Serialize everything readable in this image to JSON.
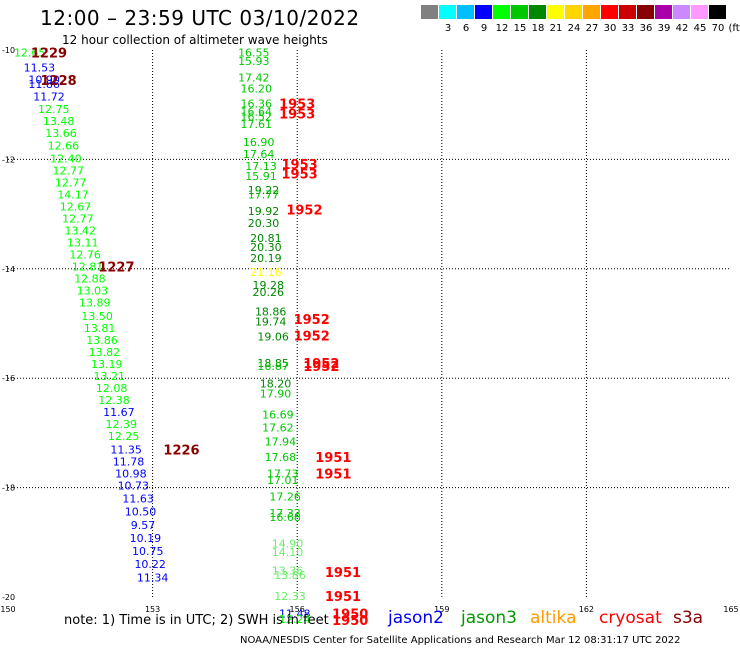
{
  "header": {
    "title": "12:00 – 23:59 UTC 03/10/2022",
    "subtitle": "12 hour collection of altimeter wave heights"
  },
  "color_scale": {
    "unit_label": "(ft)",
    "bins": [
      {
        "label": "",
        "color": "#808080"
      },
      {
        "label": "3",
        "color": "#00ffff"
      },
      {
        "label": "6",
        "color": "#00bfff"
      },
      {
        "label": "9",
        "color": "#0000ff"
      },
      {
        "label": "12",
        "color": "#00ff00"
      },
      {
        "label": "15",
        "color": "#00c800"
      },
      {
        "label": "18",
        "color": "#008800"
      },
      {
        "label": "21",
        "color": "#ffff00"
      },
      {
        "label": "24",
        "color": "#ffd700"
      },
      {
        "label": "27",
        "color": "#ffa500"
      },
      {
        "label": "30",
        "color": "#ff0000"
      },
      {
        "label": "33",
        "color": "#cc0000"
      },
      {
        "label": "36",
        "color": "#880000"
      },
      {
        "label": "39",
        "color": "#aa00aa"
      },
      {
        "label": "42",
        "color": "#cc88ff"
      },
      {
        "label": "45",
        "color": "#ff99ff"
      },
      {
        "label": "70",
        "color": "#000000"
      }
    ]
  },
  "chart_data": {
    "type": "scatter",
    "title": "12:00 – 23:59 UTC 03/10/2022",
    "subtitle": "12 hour collection of altimeter wave heights",
    "xlim": [
      150,
      165
    ],
    "ylim": [
      -20,
      -10
    ],
    "x_ticks": [
      150,
      153,
      156,
      159,
      162,
      165
    ],
    "y_ticks": [
      -10,
      -12,
      -14,
      -16,
      -18,
      -20
    ],
    "x_tick_labels": [
      "150",
      "153",
      "156",
      "159",
      "162",
      "165"
    ],
    "y_tick_labels": [
      "-10",
      "-12",
      "-14",
      "-16",
      "-18",
      "-20"
    ],
    "grid": true,
    "points": [
      {
        "lon": 150.45,
        "lat": -10.05,
        "v": "12.65",
        "c": "#00ff00"
      },
      {
        "lon": 150.65,
        "lat": -10.32,
        "v": "11.53",
        "c": "#0000ff"
      },
      {
        "lon": 150.75,
        "lat": -10.54,
        "v": "10.90",
        "c": "#0000ff"
      },
      {
        "lon": 150.75,
        "lat": -10.62,
        "v": "11.86",
        "c": "#0000ff"
      },
      {
        "lon": 150.85,
        "lat": -10.85,
        "v": "11.72",
        "c": "#0000ff"
      },
      {
        "lon": 150.95,
        "lat": -11.08,
        "v": "12.75",
        "c": "#00ff00"
      },
      {
        "lon": 151.05,
        "lat": -11.3,
        "v": "13.48",
        "c": "#00ff00"
      },
      {
        "lon": 151.1,
        "lat": -11.52,
        "v": "13.66",
        "c": "#00ff00"
      },
      {
        "lon": 151.15,
        "lat": -11.75,
        "v": "12.66",
        "c": "#00ff00"
      },
      {
        "lon": 151.2,
        "lat": -11.98,
        "v": "12.40",
        "c": "#00ff00"
      },
      {
        "lon": 151.25,
        "lat": -12.2,
        "v": "12.77",
        "c": "#00ff00"
      },
      {
        "lon": 151.3,
        "lat": -12.42,
        "v": "12.77",
        "c": "#00ff00"
      },
      {
        "lon": 151.35,
        "lat": -12.64,
        "v": "14.17",
        "c": "#00ff00"
      },
      {
        "lon": 151.4,
        "lat": -12.86,
        "v": "12.67",
        "c": "#00ff00"
      },
      {
        "lon": 151.45,
        "lat": -13.08,
        "v": "12.77",
        "c": "#00ff00"
      },
      {
        "lon": 151.5,
        "lat": -13.3,
        "v": "13.42",
        "c": "#00ff00"
      },
      {
        "lon": 151.55,
        "lat": -13.52,
        "v": "13.11",
        "c": "#00ff00"
      },
      {
        "lon": 151.6,
        "lat": -13.74,
        "v": "12.76",
        "c": "#00ff00"
      },
      {
        "lon": 151.65,
        "lat": -13.96,
        "v": "12.81",
        "c": "#00ff00"
      },
      {
        "lon": 151.7,
        "lat": -14.18,
        "v": "12.88",
        "c": "#00ff00"
      },
      {
        "lon": 151.75,
        "lat": -14.4,
        "v": "13.03",
        "c": "#00ff00"
      },
      {
        "lon": 151.8,
        "lat": -14.62,
        "v": "13.89",
        "c": "#00ff00"
      },
      {
        "lon": 151.85,
        "lat": -14.86,
        "v": "13.50",
        "c": "#00ff00"
      },
      {
        "lon": 151.9,
        "lat": -15.08,
        "v": "13.81",
        "c": "#00ff00"
      },
      {
        "lon": 151.95,
        "lat": -15.3,
        "v": "13.86",
        "c": "#00ff00"
      },
      {
        "lon": 152.0,
        "lat": -15.52,
        "v": "13.82",
        "c": "#00ff00"
      },
      {
        "lon": 152.05,
        "lat": -15.74,
        "v": "13.19",
        "c": "#00ff00"
      },
      {
        "lon": 152.1,
        "lat": -15.96,
        "v": "13.21",
        "c": "#00ff00"
      },
      {
        "lon": 152.15,
        "lat": -16.18,
        "v": "12.08",
        "c": "#00ff00"
      },
      {
        "lon": 152.2,
        "lat": -16.4,
        "v": "12.38",
        "c": "#00ff00"
      },
      {
        "lon": 152.3,
        "lat": -16.62,
        "v": "11.67",
        "c": "#0000ff"
      },
      {
        "lon": 152.35,
        "lat": -16.84,
        "v": "12.39",
        "c": "#00ff00"
      },
      {
        "lon": 152.4,
        "lat": -17.06,
        "v": "12.25",
        "c": "#00ff00"
      },
      {
        "lon": 152.45,
        "lat": -17.3,
        "v": "11.35",
        "c": "#0000ff"
      },
      {
        "lon": 152.5,
        "lat": -17.52,
        "v": "11.78",
        "c": "#0000ff"
      },
      {
        "lon": 152.55,
        "lat": -17.74,
        "v": "10.98",
        "c": "#0000ff"
      },
      {
        "lon": 152.6,
        "lat": -17.96,
        "v": "10.73",
        "c": "#0000ff"
      },
      {
        "lon": 152.7,
        "lat": -18.2,
        "v": "11.63",
        "c": "#0000ff"
      },
      {
        "lon": 152.75,
        "lat": -18.44,
        "v": "10.50",
        "c": "#0000ff"
      },
      {
        "lon": 152.8,
        "lat": -18.68,
        "v": "9.57",
        "c": "#0000ff"
      },
      {
        "lon": 152.85,
        "lat": -18.92,
        "v": "10.19",
        "c": "#0000ff"
      },
      {
        "lon": 152.9,
        "lat": -19.16,
        "v": "10.75",
        "c": "#0000ff"
      },
      {
        "lon": 152.95,
        "lat": -19.4,
        "v": "10.22",
        "c": "#0000ff"
      },
      {
        "lon": 153.0,
        "lat": -19.64,
        "v": "11.34",
        "c": "#0000ff"
      },
      {
        "lon": 155.1,
        "lat": -10.05,
        "v": "16.55",
        "c": "#00c800"
      },
      {
        "lon": 155.1,
        "lat": -10.2,
        "v": "15.93",
        "c": "#00c800"
      },
      {
        "lon": 155.1,
        "lat": -10.5,
        "v": "17.42",
        "c": "#00c800"
      },
      {
        "lon": 155.15,
        "lat": -10.7,
        "v": "16.20",
        "c": "#00c800"
      },
      {
        "lon": 155.15,
        "lat": -10.98,
        "v": "16.36",
        "c": "#00c800"
      },
      {
        "lon": 155.15,
        "lat": -11.12,
        "v": "16.64",
        "c": "#00c800"
      },
      {
        "lon": 155.15,
        "lat": -11.22,
        "v": "16.52",
        "c": "#00c800"
      },
      {
        "lon": 155.15,
        "lat": -11.35,
        "v": "17.61",
        "c": "#00c800"
      },
      {
        "lon": 155.2,
        "lat": -11.68,
        "v": "16.90",
        "c": "#00c800"
      },
      {
        "lon": 155.2,
        "lat": -11.9,
        "v": "17.64",
        "c": "#00c800"
      },
      {
        "lon": 155.25,
        "lat": -12.12,
        "v": "17.13",
        "c": "#00c800"
      },
      {
        "lon": 155.25,
        "lat": -12.3,
        "v": "15.91",
        "c": "#00c800"
      },
      {
        "lon": 155.3,
        "lat": -12.56,
        "v": "19.22",
        "c": "#008800"
      },
      {
        "lon": 155.3,
        "lat": -12.64,
        "v": "17.77",
        "c": "#00c800"
      },
      {
        "lon": 155.3,
        "lat": -12.94,
        "v": "19.92",
        "c": "#008800"
      },
      {
        "lon": 155.3,
        "lat": -13.16,
        "v": "20.30",
        "c": "#008800"
      },
      {
        "lon": 155.35,
        "lat": -13.44,
        "v": "20.81",
        "c": "#008800"
      },
      {
        "lon": 155.35,
        "lat": -13.6,
        "v": "20.30",
        "c": "#008800"
      },
      {
        "lon": 155.35,
        "lat": -13.8,
        "v": "20.19",
        "c": "#008800"
      },
      {
        "lon": 155.35,
        "lat": -14.06,
        "v": "21.16",
        "c": "#ffff00"
      },
      {
        "lon": 155.4,
        "lat": -14.3,
        "v": "19.28",
        "c": "#008800"
      },
      {
        "lon": 155.4,
        "lat": -14.42,
        "v": "20.26",
        "c": "#008800"
      },
      {
        "lon": 155.45,
        "lat": -14.78,
        "v": "18.86",
        "c": "#008800"
      },
      {
        "lon": 155.45,
        "lat": -14.96,
        "v": "19.74",
        "c": "#008800"
      },
      {
        "lon": 155.5,
        "lat": -15.24,
        "v": "19.06",
        "c": "#008800"
      },
      {
        "lon": 155.5,
        "lat": -15.72,
        "v": "18.85",
        "c": "#008800"
      },
      {
        "lon": 155.5,
        "lat": -15.78,
        "v": "16.87",
        "c": "#00c800"
      },
      {
        "lon": 155.55,
        "lat": -16.1,
        "v": "18.20",
        "c": "#008800"
      },
      {
        "lon": 155.55,
        "lat": -16.28,
        "v": "17.90",
        "c": "#00c800"
      },
      {
        "lon": 155.6,
        "lat": -16.66,
        "v": "16.69",
        "c": "#00c800"
      },
      {
        "lon": 155.6,
        "lat": -16.9,
        "v": "17.62",
        "c": "#00c800"
      },
      {
        "lon": 155.65,
        "lat": -17.16,
        "v": "17.94",
        "c": "#00c800"
      },
      {
        "lon": 155.65,
        "lat": -17.44,
        "v": "17.68",
        "c": "#00c800"
      },
      {
        "lon": 155.7,
        "lat": -17.74,
        "v": "17.73",
        "c": "#00c800"
      },
      {
        "lon": 155.7,
        "lat": -17.86,
        "v": "17.01",
        "c": "#00c800"
      },
      {
        "lon": 155.75,
        "lat": -18.16,
        "v": "17.26",
        "c": "#00c800"
      },
      {
        "lon": 155.75,
        "lat": -18.46,
        "v": "17.32",
        "c": "#00c800"
      },
      {
        "lon": 155.75,
        "lat": -18.54,
        "v": "16.68",
        "c": "#00c800"
      },
      {
        "lon": 155.8,
        "lat": -19.02,
        "v": "14.90",
        "c": "#66ee66"
      },
      {
        "lon": 155.8,
        "lat": -19.18,
        "v": "14.10",
        "c": "#66ee66"
      },
      {
        "lon": 155.8,
        "lat": -19.52,
        "v": "13.36",
        "c": "#66ee66"
      },
      {
        "lon": 155.85,
        "lat": -19.6,
        "v": "13.86",
        "c": "#66ee66"
      },
      {
        "lon": 155.85,
        "lat": -19.98,
        "v": "12.33",
        "c": "#66ee66"
      },
      {
        "lon": 155.95,
        "lat": -20.3,
        "v": "11.48",
        "c": "#0000ff"
      },
      {
        "lon": 155.95,
        "lat": -20.4,
        "v": "12.24",
        "c": "#00ff00"
      }
    ],
    "time_labels": [
      {
        "lon": 150.85,
        "lat": -10.05,
        "t": "1229",
        "c": "#880000"
      },
      {
        "lon": 151.05,
        "lat": -10.55,
        "t": "1228",
        "c": "#880000"
      },
      {
        "lon": 152.25,
        "lat": -13.96,
        "t": "1227",
        "c": "#880000"
      },
      {
        "lon": 153.6,
        "lat": -17.3,
        "t": "1226",
        "c": "#880000"
      },
      {
        "lon": 156.0,
        "lat": -10.98,
        "t": "1953",
        "c": "#ff0000"
      },
      {
        "lon": 156.0,
        "lat": -11.16,
        "t": "1953",
        "c": "#ff0000"
      },
      {
        "lon": 156.05,
        "lat": -12.08,
        "t": "1953",
        "c": "#ff0000"
      },
      {
        "lon": 156.05,
        "lat": -12.26,
        "t": "1953",
        "c": "#ff0000"
      },
      {
        "lon": 156.15,
        "lat": -12.92,
        "t": "1952",
        "c": "#ff0000"
      },
      {
        "lon": 156.3,
        "lat": -14.92,
        "t": "1952",
        "c": "#ff0000"
      },
      {
        "lon": 156.3,
        "lat": -15.22,
        "t": "1952",
        "c": "#ff0000"
      },
      {
        "lon": 156.5,
        "lat": -15.72,
        "t": "1952",
        "c": "#ff0000"
      },
      {
        "lon": 156.5,
        "lat": -15.78,
        "t": "1952",
        "c": "#ff0000"
      },
      {
        "lon": 156.75,
        "lat": -17.44,
        "t": "1951",
        "c": "#ff0000"
      },
      {
        "lon": 156.75,
        "lat": -17.74,
        "t": "1951",
        "c": "#ff0000"
      },
      {
        "lon": 156.95,
        "lat": -19.54,
        "t": "1951",
        "c": "#ff0000"
      },
      {
        "lon": 156.95,
        "lat": -19.98,
        "t": "1951",
        "c": "#ff0000"
      },
      {
        "lon": 157.1,
        "lat": -20.3,
        "t": "1950",
        "c": "#ff0000"
      },
      {
        "lon": 157.1,
        "lat": -20.42,
        "t": "1950",
        "c": "#ff0000"
      }
    ]
  },
  "footer": {
    "note": "note: 1) Time is in UTC; 2) SWH is in feet",
    "credit": "NOAA/NESDIS Center for Satellite Applications and Research   Mar 12 08:31:17 UTC 2022",
    "satellites": [
      {
        "name": "jason2",
        "color": "#0000ee"
      },
      {
        "name": "jason3",
        "color": "#009900"
      },
      {
        "name": "altika",
        "color": "#ff9900"
      },
      {
        "name": "cryosat",
        "color": "#ff0000"
      },
      {
        "name": "s3a",
        "color": "#880000"
      }
    ]
  }
}
